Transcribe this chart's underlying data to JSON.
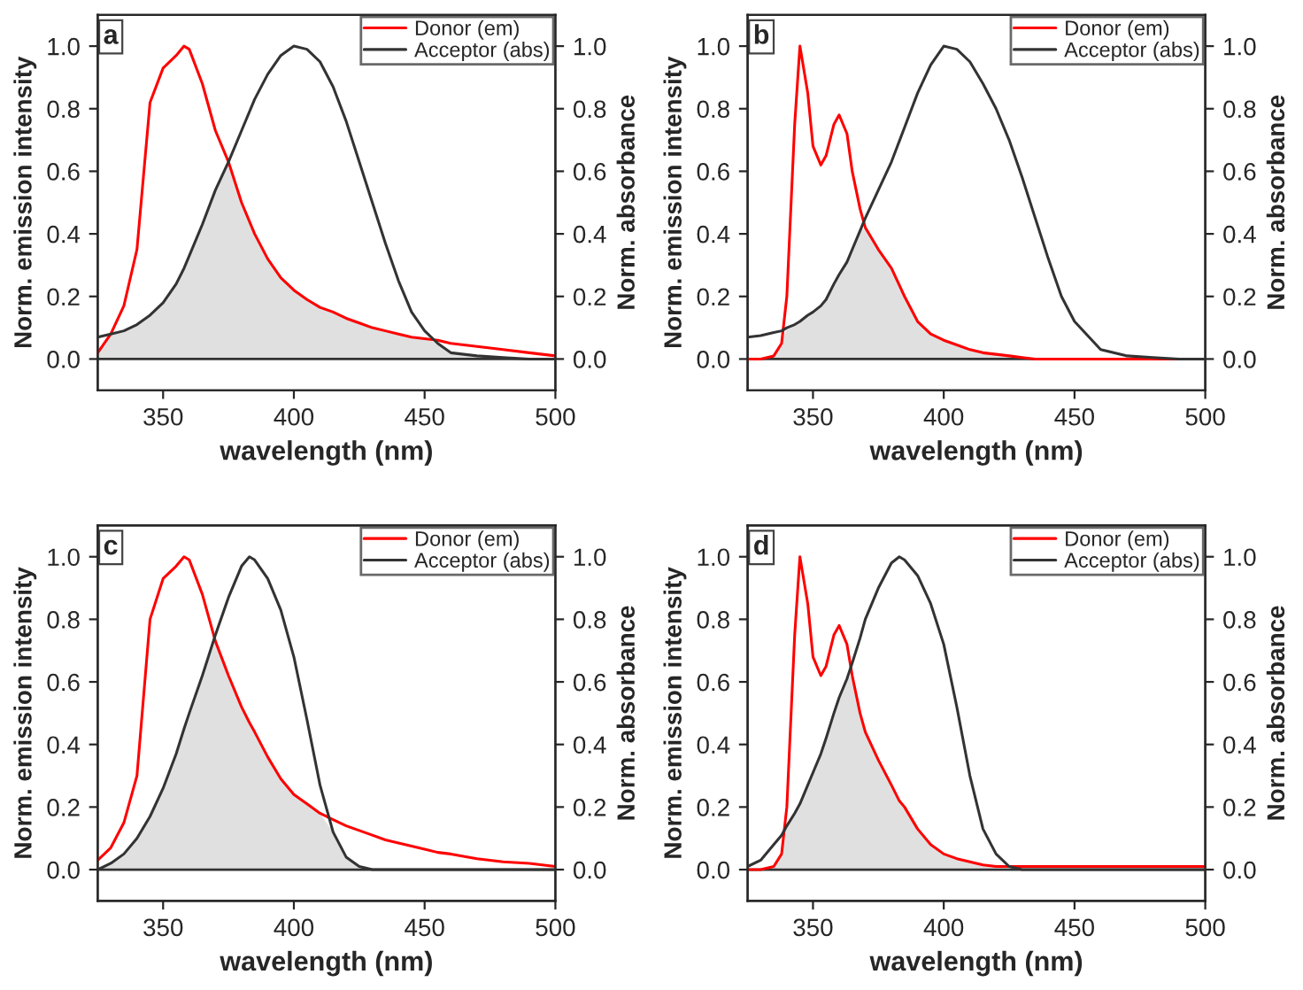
{
  "chart_data": [
    {
      "type": "line",
      "title": "a",
      "xlabel": "wavelength (nm)",
      "ylabel": "Norm. emission intensity",
      "y2label": "Norm. absorbance",
      "x": [
        325,
        330,
        335,
        340,
        345,
        350,
        355,
        358,
        360,
        365,
        370,
        375,
        380,
        385,
        390,
        395,
        400,
        405,
        410,
        415,
        420,
        425,
        430,
        435,
        440,
        445,
        450,
        455,
        460,
        470,
        480,
        490,
        500
      ],
      "series": [
        {
          "type": "area",
          "color": "#e0e0e0",
          "values": [
            0.02,
            0.08,
            0.09,
            0.11,
            0.14,
            0.18,
            0.24,
            0.29,
            0.33,
            0.43,
            0.54,
            0.63,
            0.5,
            0.4,
            0.32,
            0.26,
            0.22,
            0.19,
            0.165,
            0.15,
            0.13,
            0.115,
            0.1,
            0.09,
            0.08,
            0.07,
            0.065,
            0.05,
            0.02,
            0.01,
            0.005,
            0,
            0
          ]
        },
        {
          "name": "Donor (em)",
          "color": "#ff0000",
          "values": [
            0.02,
            0.08,
            0.17,
            0.35,
            0.82,
            0.93,
            0.97,
            1.0,
            0.99,
            0.88,
            0.73,
            0.63,
            0.5,
            0.4,
            0.32,
            0.26,
            0.22,
            0.19,
            0.165,
            0.15,
            0.13,
            0.115,
            0.1,
            0.09,
            0.08,
            0.07,
            0.065,
            0.06,
            0.05,
            0.04,
            0.03,
            0.02,
            0.01
          ]
        },
        {
          "name": "Acceptor (abs)",
          "color": "#333333",
          "axis": "y2",
          "values": [
            0.07,
            0.08,
            0.09,
            0.11,
            0.14,
            0.18,
            0.24,
            0.29,
            0.33,
            0.43,
            0.54,
            0.63,
            0.73,
            0.83,
            0.91,
            0.97,
            1.0,
            0.99,
            0.95,
            0.87,
            0.76,
            0.63,
            0.5,
            0.37,
            0.25,
            0.15,
            0.09,
            0.05,
            0.02,
            0.01,
            0.005,
            0,
            0
          ]
        }
      ],
      "xlim": [
        325,
        500
      ],
      "xticks": [
        350,
        400,
        450,
        500
      ],
      "ylim": [
        -0.1,
        1.1
      ],
      "yticks": [
        {
          "value": 0,
          "label": "0.0"
        },
        {
          "value": 0.2,
          "label": "0.2"
        },
        {
          "value": 0.4,
          "label": "0.4"
        },
        {
          "value": 0.6,
          "label": "0.6"
        },
        {
          "value": 0.8,
          "label": "0.8"
        },
        {
          "value": 1,
          "label": "1.0"
        }
      ],
      "y2lim": [
        -0.1,
        1.1
      ],
      "y2ticks": [
        {
          "value": 0,
          "label": "0.0"
        },
        {
          "value": 0.2,
          "label": "0.2"
        },
        {
          "value": 0.4,
          "label": "0.4"
        },
        {
          "value": 0.6,
          "label": "0.6"
        },
        {
          "value": 0.8,
          "label": "0.8"
        },
        {
          "value": 1,
          "label": "1.0"
        }
      ],
      "ref_lines": [
        {
          "axis": "y",
          "value": 0,
          "color": "#333333"
        }
      ],
      "legend": "top right",
      "grid": false
    },
    {
      "type": "line",
      "title": "b",
      "xlabel": "wavelength (nm)",
      "ylabel": "Norm. emission intensity",
      "y2label": "Norm. absorbance",
      "x": [
        325,
        330,
        335,
        338,
        340,
        343,
        345,
        348,
        350,
        353,
        355,
        358,
        360,
        363,
        365,
        368,
        370,
        375,
        380,
        385,
        390,
        395,
        400,
        405,
        410,
        415,
        420,
        425,
        430,
        435,
        440,
        445,
        450,
        460,
        470,
        480,
        490,
        500
      ],
      "series": [
        {
          "type": "area",
          "color": "#e0e0e0",
          "values": [
            0,
            0,
            0.01,
            0.05,
            0.1,
            0.11,
            0.12,
            0.14,
            0.15,
            0.17,
            0.19,
            0.24,
            0.27,
            0.31,
            0.35,
            0.41,
            0.42,
            0.35,
            0.29,
            0.2,
            0.12,
            0.08,
            0.06,
            0.045,
            0.03,
            0.02,
            0.015,
            0.01,
            0.005,
            0,
            0,
            0,
            0,
            0,
            0,
            0,
            0,
            0
          ]
        },
        {
          "name": "Donor (em)",
          "color": "#ff0000",
          "values": [
            0,
            0,
            0.01,
            0.05,
            0.2,
            0.75,
            1.0,
            0.85,
            0.68,
            0.62,
            0.65,
            0.75,
            0.78,
            0.72,
            0.6,
            0.48,
            0.42,
            0.35,
            0.29,
            0.2,
            0.12,
            0.08,
            0.06,
            0.045,
            0.03,
            0.02,
            0.015,
            0.01,
            0.005,
            0,
            0,
            0,
            0,
            0,
            0,
            0,
            0,
            0
          ]
        },
        {
          "name": "Acceptor (abs)",
          "color": "#333333",
          "axis": "y2",
          "values": [
            0.07,
            0.075,
            0.085,
            0.09,
            0.1,
            0.11,
            0.12,
            0.14,
            0.15,
            0.17,
            0.19,
            0.24,
            0.27,
            0.31,
            0.35,
            0.41,
            0.45,
            0.54,
            0.63,
            0.74,
            0.85,
            0.94,
            1.0,
            0.99,
            0.95,
            0.88,
            0.8,
            0.7,
            0.58,
            0.45,
            0.32,
            0.2,
            0.12,
            0.03,
            0.01,
            0.005,
            0,
            0
          ]
        }
      ],
      "xlim": [
        325,
        500
      ],
      "xticks": [
        350,
        400,
        450,
        500
      ],
      "ylim": [
        -0.1,
        1.1
      ],
      "yticks": [
        {
          "value": 0,
          "label": "0.0"
        },
        {
          "value": 0.2,
          "label": "0.2"
        },
        {
          "value": 0.4,
          "label": "0.4"
        },
        {
          "value": 0.6,
          "label": "0.6"
        },
        {
          "value": 0.8,
          "label": "0.8"
        },
        {
          "value": 1,
          "label": "1.0"
        }
      ],
      "y2lim": [
        -0.1,
        1.1
      ],
      "y2ticks": [
        {
          "value": 0,
          "label": "0.0"
        },
        {
          "value": 0.2,
          "label": "0.2"
        },
        {
          "value": 0.4,
          "label": "0.4"
        },
        {
          "value": 0.6,
          "label": "0.6"
        },
        {
          "value": 0.8,
          "label": "0.8"
        },
        {
          "value": 1,
          "label": "1.0"
        }
      ],
      "ref_lines": [
        {
          "axis": "y",
          "value": 0,
          "color": "#333333"
        }
      ],
      "legend": "top right",
      "grid": false
    },
    {
      "type": "line",
      "title": "c",
      "xlabel": "wavelength (nm)",
      "ylabel": "Norm. emission intensity",
      "y2label": "Norm. absorbance",
      "x": [
        325,
        330,
        335,
        340,
        345,
        350,
        355,
        358,
        360,
        365,
        370,
        375,
        380,
        383,
        385,
        390,
        395,
        400,
        405,
        410,
        415,
        420,
        425,
        430,
        435,
        440,
        445,
        450,
        455,
        460,
        470,
        480,
        490,
        500
      ],
      "series": [
        {
          "type": "area",
          "color": "#e0e0e0",
          "values": [
            0,
            0.02,
            0.05,
            0.1,
            0.17,
            0.26,
            0.37,
            0.45,
            0.5,
            0.62,
            0.73,
            0.62,
            0.52,
            0.47,
            0.44,
            0.36,
            0.29,
            0.24,
            0.21,
            0.18,
            0.12,
            0.04,
            0.01,
            0,
            0,
            0,
            0,
            0,
            0,
            0,
            0,
            0,
            0,
            0
          ]
        },
        {
          "name": "Donor (em)",
          "color": "#ff0000",
          "values": [
            0.03,
            0.07,
            0.15,
            0.3,
            0.8,
            0.93,
            0.97,
            1.0,
            0.99,
            0.88,
            0.73,
            0.62,
            0.52,
            0.47,
            0.44,
            0.36,
            0.29,
            0.24,
            0.21,
            0.18,
            0.16,
            0.14,
            0.125,
            0.11,
            0.095,
            0.085,
            0.075,
            0.065,
            0.055,
            0.05,
            0.035,
            0.025,
            0.02,
            0.01
          ]
        },
        {
          "name": "Acceptor (abs)",
          "color": "#333333",
          "axis": "y2",
          "values": [
            0,
            0.02,
            0.05,
            0.1,
            0.17,
            0.26,
            0.37,
            0.45,
            0.5,
            0.62,
            0.75,
            0.87,
            0.97,
            1.0,
            0.99,
            0.93,
            0.83,
            0.68,
            0.48,
            0.27,
            0.12,
            0.04,
            0.01,
            0,
            0,
            0,
            0,
            0,
            0,
            0,
            0,
            0,
            0,
            0
          ]
        }
      ],
      "xlim": [
        325,
        500
      ],
      "xticks": [
        350,
        400,
        450,
        500
      ],
      "ylim": [
        -0.1,
        1.1
      ],
      "yticks": [
        {
          "value": 0,
          "label": "0.0"
        },
        {
          "value": 0.2,
          "label": "0.2"
        },
        {
          "value": 0.4,
          "label": "0.4"
        },
        {
          "value": 0.6,
          "label": "0.6"
        },
        {
          "value": 0.8,
          "label": "0.8"
        },
        {
          "value": 1,
          "label": "1.0"
        }
      ],
      "y2lim": [
        -0.1,
        1.1
      ],
      "y2ticks": [
        {
          "value": 0,
          "label": "0.0"
        },
        {
          "value": 0.2,
          "label": "0.2"
        },
        {
          "value": 0.4,
          "label": "0.4"
        },
        {
          "value": 0.6,
          "label": "0.6"
        },
        {
          "value": 0.8,
          "label": "0.8"
        },
        {
          "value": 1,
          "label": "1.0"
        }
      ],
      "ref_lines": [
        {
          "axis": "y",
          "value": 0,
          "color": "#333333"
        }
      ],
      "legend": "top right",
      "grid": false
    },
    {
      "type": "line",
      "title": "d",
      "xlabel": "wavelength (nm)",
      "ylabel": "Norm. emission intensity",
      "y2label": "Norm. absorbance",
      "x": [
        325,
        330,
        335,
        338,
        340,
        343,
        345,
        348,
        350,
        353,
        355,
        358,
        360,
        363,
        365,
        368,
        370,
        375,
        380,
        383,
        385,
        390,
        395,
        400,
        405,
        410,
        415,
        420,
        425,
        430,
        440,
        450,
        460,
        470,
        480,
        490,
        500
      ],
      "series": [
        {
          "type": "area",
          "color": "#e0e0e0",
          "values": [
            0,
            0,
            0.01,
            0.05,
            0.14,
            0.18,
            0.21,
            0.27,
            0.31,
            0.37,
            0.42,
            0.5,
            0.55,
            0.61,
            0.62,
            0.5,
            0.44,
            0.35,
            0.27,
            0.22,
            0.2,
            0.13,
            0.08,
            0.05,
            0.035,
            0.025,
            0.015,
            0.01,
            0.01,
            0,
            0,
            0,
            0,
            0,
            0,
            0,
            0
          ]
        },
        {
          "name": "Donor (em)",
          "color": "#ff0000",
          "values": [
            0,
            0,
            0.01,
            0.05,
            0.2,
            0.75,
            1.0,
            0.85,
            0.68,
            0.62,
            0.65,
            0.75,
            0.78,
            0.72,
            0.62,
            0.5,
            0.44,
            0.35,
            0.27,
            0.22,
            0.2,
            0.13,
            0.08,
            0.05,
            0.035,
            0.025,
            0.015,
            0.01,
            0.01,
            0.01,
            0.01,
            0.01,
            0.01,
            0.01,
            0.01,
            0.01,
            0.01
          ]
        },
        {
          "name": "Acceptor (abs)",
          "color": "#333333",
          "axis": "y2",
          "values": [
            0.01,
            0.03,
            0.08,
            0.11,
            0.14,
            0.18,
            0.21,
            0.27,
            0.31,
            0.37,
            0.42,
            0.5,
            0.55,
            0.61,
            0.66,
            0.74,
            0.8,
            0.9,
            0.98,
            1.0,
            0.99,
            0.94,
            0.85,
            0.72,
            0.52,
            0.3,
            0.13,
            0.05,
            0.01,
            0,
            0,
            0,
            0,
            0,
            0,
            0,
            0
          ]
        }
      ],
      "xlim": [
        325,
        500
      ],
      "xticks": [
        350,
        400,
        450,
        500
      ],
      "ylim": [
        -0.1,
        1.1
      ],
      "yticks": [
        {
          "value": 0,
          "label": "0.0"
        },
        {
          "value": 0.2,
          "label": "0.2"
        },
        {
          "value": 0.4,
          "label": "0.4"
        },
        {
          "value": 0.6,
          "label": "0.6"
        },
        {
          "value": 0.8,
          "label": "0.8"
        },
        {
          "value": 1,
          "label": "1.0"
        }
      ],
      "y2lim": [
        -0.1,
        1.1
      ],
      "y2ticks": [
        {
          "value": 0,
          "label": "0.0"
        },
        {
          "value": 0.2,
          "label": "0.2"
        },
        {
          "value": 0.4,
          "label": "0.4"
        },
        {
          "value": 0.6,
          "label": "0.6"
        },
        {
          "value": 0.8,
          "label": "0.8"
        },
        {
          "value": 1,
          "label": "1.0"
        }
      ],
      "ref_lines": [
        {
          "axis": "y",
          "value": 0,
          "color": "#333333"
        }
      ],
      "legend": "top right",
      "grid": false
    }
  ]
}
